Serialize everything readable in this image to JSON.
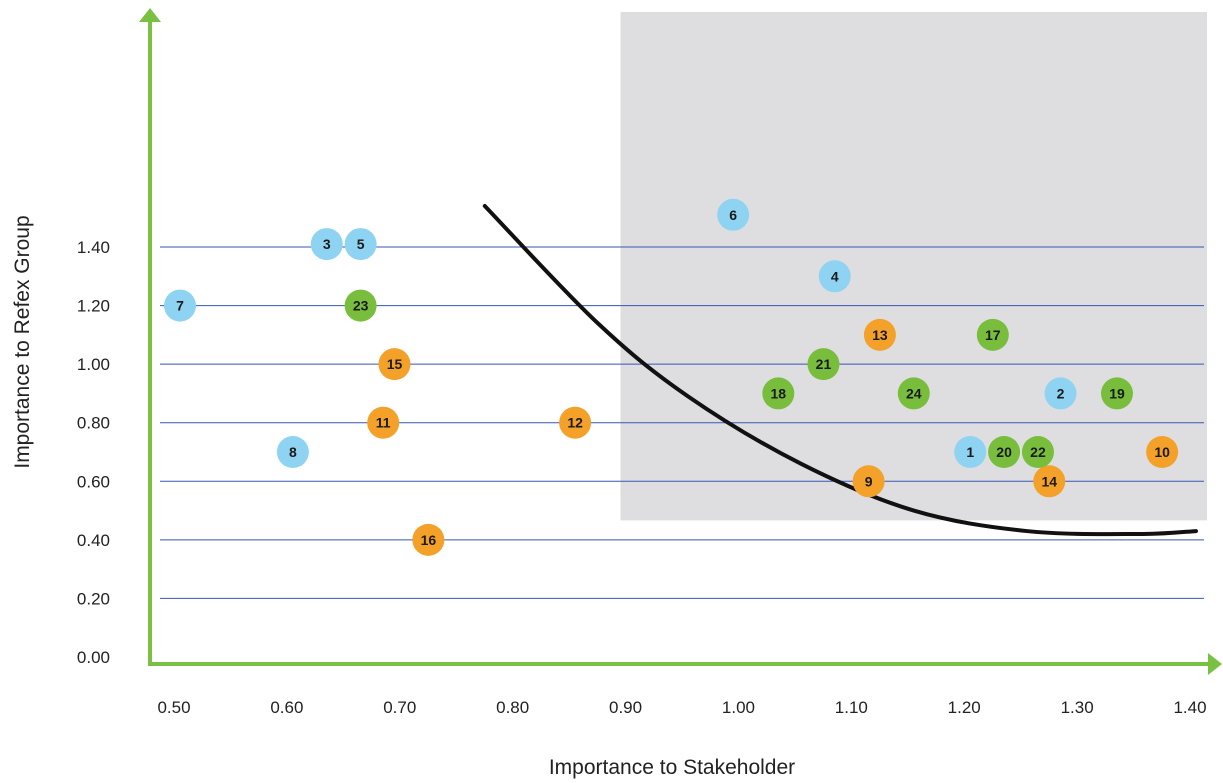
{
  "chart_data": {
    "type": "scatter",
    "title": "",
    "xlabel": "Importance to Stakeholder",
    "ylabel": "Importance to Refex Group",
    "xlim": [
      0.5,
      1.4
    ],
    "ylim": [
      0.0,
      1.55
    ],
    "x_ticks": [
      "0.50",
      "0.60",
      "0.70",
      "0.80",
      "0.90",
      "1.00",
      "1.10",
      "1.20",
      "1.30",
      "1.40"
    ],
    "y_ticks": [
      "0.00",
      "0.20",
      "0.40",
      "0.60",
      "0.80",
      "1.00",
      "1.20",
      "1.40"
    ],
    "grid": "horizontal",
    "colors": {
      "axis": "#7ac143",
      "grid": "#3a55b4",
      "blue_points": "#8fd3f2",
      "green_points": "#78be3c",
      "orange_points": "#f4a12a",
      "highlight_region": "#dedee0",
      "curve": "#111111"
    },
    "highlight_region": {
      "x": [
        0.9,
        1.4
      ],
      "y": [
        0.47,
        1.55
      ]
    },
    "curve": [
      [
        0.77,
        1.54
      ],
      [
        0.87,
        1.14
      ],
      [
        0.95,
        0.89
      ],
      [
        1.05,
        0.66
      ],
      [
        1.15,
        0.5
      ],
      [
        1.25,
        0.43
      ],
      [
        1.35,
        0.42
      ],
      [
        1.4,
        0.43
      ]
    ],
    "points": [
      {
        "label": "1",
        "x": 1.2,
        "y": 0.7,
        "group": "blue"
      },
      {
        "label": "2",
        "x": 1.28,
        "y": 0.9,
        "group": "blue"
      },
      {
        "label": "3",
        "x": 0.63,
        "y": 1.41,
        "group": "blue"
      },
      {
        "label": "4",
        "x": 1.08,
        "y": 1.3,
        "group": "blue"
      },
      {
        "label": "5",
        "x": 0.66,
        "y": 1.41,
        "group": "blue"
      },
      {
        "label": "6",
        "x": 0.99,
        "y": 1.51,
        "group": "blue"
      },
      {
        "label": "7",
        "x": 0.5,
        "y": 1.2,
        "group": "blue"
      },
      {
        "label": "8",
        "x": 0.6,
        "y": 0.7,
        "group": "blue"
      },
      {
        "label": "9",
        "x": 1.11,
        "y": 0.6,
        "group": "orange"
      },
      {
        "label": "10",
        "x": 1.37,
        "y": 0.7,
        "group": "orange"
      },
      {
        "label": "11",
        "x": 0.68,
        "y": 0.8,
        "group": "orange"
      },
      {
        "label": "12",
        "x": 0.85,
        "y": 0.8,
        "group": "orange"
      },
      {
        "label": "13",
        "x": 1.12,
        "y": 1.1,
        "group": "orange"
      },
      {
        "label": "14",
        "x": 1.27,
        "y": 0.6,
        "group": "orange"
      },
      {
        "label": "15",
        "x": 0.69,
        "y": 1.0,
        "group": "orange"
      },
      {
        "label": "16",
        "x": 0.72,
        "y": 0.4,
        "group": "orange"
      },
      {
        "label": "17",
        "x": 1.22,
        "y": 1.1,
        "group": "green"
      },
      {
        "label": "18",
        "x": 1.03,
        "y": 0.9,
        "group": "green"
      },
      {
        "label": "19",
        "x": 1.33,
        "y": 0.9,
        "group": "green"
      },
      {
        "label": "20",
        "x": 1.23,
        "y": 0.7,
        "group": "green"
      },
      {
        "label": "21",
        "x": 1.07,
        "y": 1.0,
        "group": "green"
      },
      {
        "label": "22",
        "x": 1.26,
        "y": 0.7,
        "group": "green"
      },
      {
        "label": "23",
        "x": 0.66,
        "y": 1.2,
        "group": "green"
      },
      {
        "label": "24",
        "x": 1.15,
        "y": 0.9,
        "group": "green"
      }
    ]
  }
}
